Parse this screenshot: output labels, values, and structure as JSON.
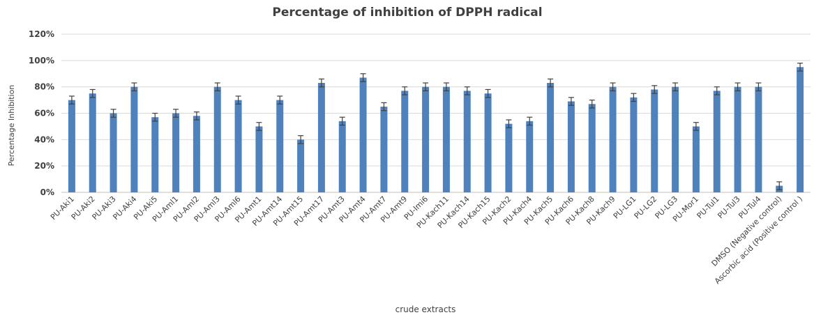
{
  "chart_data": {
    "type": "bar",
    "title": "Percentage of inhibition of DPPH radical",
    "xlabel": "crude extracts",
    "ylabel": "Percentage Inhibition",
    "ylim": [
      0,
      120
    ],
    "yticks": [
      0,
      20,
      40,
      60,
      80,
      100,
      120
    ],
    "ytick_labels": [
      "0%",
      "20%",
      "40%",
      "60%",
      "80%",
      "100%",
      "120%"
    ],
    "grid": true,
    "legend": "none",
    "bar_color": "#4f81bd",
    "error_color": "#404040",
    "categories": [
      "PU-Aki1",
      "PU-Aki2",
      "PU-Aki3",
      "PU-Aki4",
      "PU-Aki5",
      "PU-Aml1",
      "PU-Aml2",
      "PU-Aml3",
      "PU-Aml6",
      "PU-Amt1",
      "PU-Amt14",
      "PU-Amt15",
      "PU-Amt17",
      "PU-Amt3",
      "PU-Amt4",
      "PU-Amt7",
      "PU-Amt9",
      "PU-Imi6",
      "PU-Kach11",
      "PU-Kach14",
      "PU-Kach15",
      "PU-Kach2",
      "PU-Kach4",
      "PU-Kach5",
      "PU-Kach6",
      "PU-Kach8",
      "PU-Kach9",
      "PU-LG1",
      "PU-LG2",
      "PU-LG3",
      "PU-Mor1",
      "PU-Tul1",
      "PU-Tul3",
      "PU-Tul4",
      "DMSO (Negative control)",
      "Ascorbic acid (Positive control )"
    ],
    "values": [
      70,
      75,
      60,
      80,
      57,
      60,
      58,
      80,
      70,
      50,
      70,
      40,
      83,
      54,
      87,
      65,
      77,
      80,
      80,
      77,
      75,
      52,
      54,
      83,
      69,
      67,
      80,
      72,
      78,
      80,
      50,
      77,
      80,
      80,
      5,
      95
    ],
    "errors": [
      3,
      3,
      3,
      3,
      3,
      3,
      3,
      3,
      3,
      3,
      3,
      3,
      3,
      3,
      3,
      3,
      3,
      3,
      3,
      3,
      3,
      3,
      3,
      3,
      3,
      3,
      3,
      3,
      3,
      3,
      3,
      3,
      3,
      3,
      3,
      3
    ]
  }
}
